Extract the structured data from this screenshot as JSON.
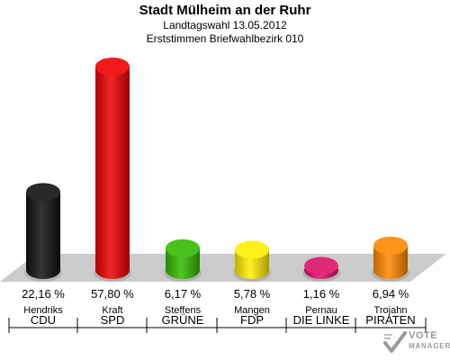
{
  "chart_data": {
    "type": "bar",
    "title": "Stadt Mülheim an der Ruhr",
    "subtitle": "Landtagswahl 13.05.2012",
    "subtitle2": "Erststimmen Briefwahlbezirk 010",
    "categories": [
      "CDU",
      "SPD",
      "GRÜNE",
      "FDP",
      "DIE LINKE",
      "PIRATEN"
    ],
    "candidates": [
      "Hendriks",
      "Kraft",
      "Steffens",
      "Mangen",
      "Pernau",
      "Trojahn"
    ],
    "values": [
      22.16,
      57.8,
      6.17,
      5.78,
      1.16,
      6.94
    ],
    "value_labels": [
      "22,16 %",
      "57,80 %",
      "6,17 %",
      "5,78 %",
      "1,16 %",
      "6,94 %"
    ],
    "colors": [
      "#111111",
      "#ee0000",
      "#33bb00",
      "#ffee00",
      "#dd1166",
      "#ff8800"
    ],
    "ylim": [
      0,
      57.8
    ],
    "grid": false,
    "legend": "none"
  },
  "logo": {
    "line1": "VOTE",
    "line2": "MANAGER"
  }
}
